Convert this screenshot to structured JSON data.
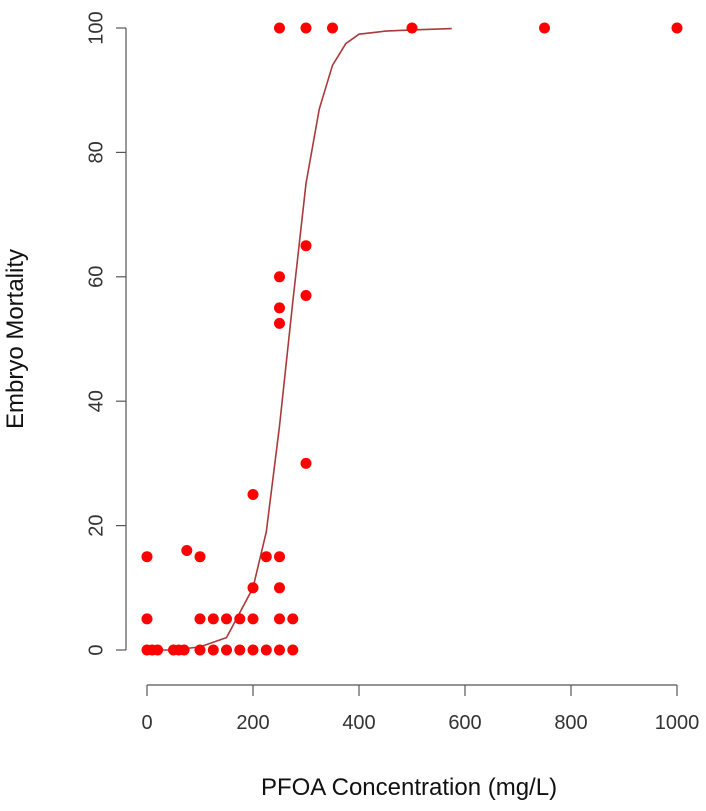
{
  "chart_data": {
    "type": "scatter",
    "title": "",
    "xlabel": "PFOA Concentration (mg/L)",
    "ylabel": "Embryo Mortality",
    "xlim": [
      0,
      1000
    ],
    "ylim": [
      0,
      100
    ],
    "x_ticks": [
      0,
      200,
      400,
      600,
      800,
      1000
    ],
    "y_ticks": [
      0,
      20,
      40,
      60,
      80,
      100
    ],
    "grid": false,
    "legend": "none",
    "colors": {
      "points": "#ff0000",
      "fit_line": "#a83a3a",
      "axis": "#555555"
    },
    "series": [
      {
        "points": [
          [
            0,
            15
          ],
          [
            0,
            5
          ],
          [
            0,
            0
          ],
          [
            10,
            0
          ],
          [
            20,
            0
          ],
          [
            50,
            0
          ],
          [
            60,
            0
          ],
          [
            70,
            0
          ],
          [
            75,
            16
          ],
          [
            100,
            15
          ],
          [
            100,
            5
          ],
          [
            100,
            0
          ],
          [
            125,
            5
          ],
          [
            125,
            0
          ],
          [
            150,
            5
          ],
          [
            150,
            0
          ],
          [
            175,
            5
          ],
          [
            175,
            0
          ],
          [
            200,
            25
          ],
          [
            200,
            10
          ],
          [
            200,
            5
          ],
          [
            200,
            0
          ],
          [
            225,
            15
          ],
          [
            225,
            0
          ],
          [
            250,
            100
          ],
          [
            250,
            60
          ],
          [
            250,
            55
          ],
          [
            250,
            52.5
          ],
          [
            250,
            15
          ],
          [
            250,
            10
          ],
          [
            250,
            5
          ],
          [
            250,
            0
          ],
          [
            275,
            5
          ],
          [
            275,
            0
          ],
          [
            300,
            100
          ],
          [
            300,
            65
          ],
          [
            300,
            57
          ],
          [
            300,
            30
          ],
          [
            350,
            100
          ],
          [
            500,
            100
          ],
          [
            750,
            100
          ],
          [
            1000,
            100
          ]
        ]
      },
      {
        "type": "line",
        "x": [
          0,
          50,
          100,
          150,
          200,
          225,
          250,
          275,
          300,
          325,
          350,
          375,
          400,
          450,
          500,
          575
        ],
        "y": [
          0,
          0,
          0.5,
          2,
          10,
          19,
          36,
          56,
          75,
          87,
          94,
          97.5,
          99,
          99.5,
          99.7,
          99.9
        ]
      }
    ]
  }
}
